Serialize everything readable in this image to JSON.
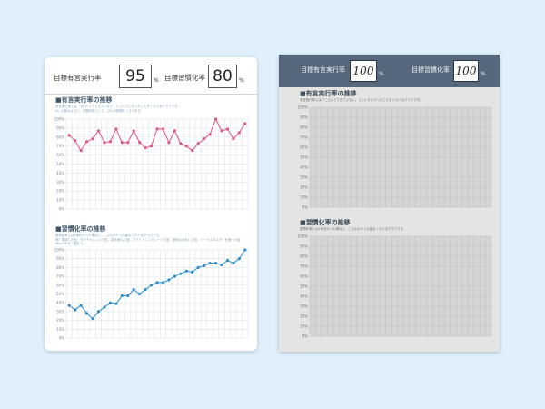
{
  "left_card": {
    "header": {
      "label1": "目標有言実行率",
      "value1": "95",
      "pct1": "%",
      "label2": "目標習慣化率",
      "value2": "80",
      "pct2": "%"
    },
    "section1": {
      "title": "■有言実行率の推移",
      "note": "有言実行率とは「1日ＡＬでできていない、じっくりにやったことをくらべるグラフです。",
      "note2": "※…以前のように、万国共有として、ひとの評価をくらべます。"
    },
    "section2": {
      "title": "■習慣化率の推移",
      "note": "習慣化率とは1毎日やった場合と、こぶんのやった量をくらべるグラフです。",
      "note2": "例）達成した目、ダイチャレンジで目、書を読んだ目、ホワイトニングシートで目、読み込みをした目、ソートエネルギーを使った目、Word をモ一度打つ。"
    }
  },
  "right_photo": {
    "header": {
      "label1": "目標有言実行率",
      "value1": "100",
      "pct1": "%",
      "label2": "目標習慣化率",
      "value2": "100",
      "pct2": "%"
    },
    "section1": {
      "title": "■有言実行率の推移",
      "note": "有言実行率とは「こぶんでできていない、じっくりにやったことをくらべるグラフです。"
    },
    "section2": {
      "title": "■習慣化率の推移",
      "note": "習慣化率とは1毎日やった場合と、こぶんのやった量をくらべるグラフです。"
    }
  },
  "chart_data": [
    {
      "type": "line",
      "ylabel_ticks": [
        "100%",
        "90%",
        "80%",
        "70%",
        "60%",
        "50%",
        "40%",
        "30%",
        "20%",
        "10%",
        "0%"
      ],
      "ylim": [
        0,
        100
      ],
      "series": [
        {
          "color": "#e0577f",
          "values": [
            82,
            76,
            65,
            75,
            78,
            87,
            74,
            75,
            89,
            74,
            74,
            87,
            74,
            68,
            70,
            89,
            89,
            74,
            87,
            73,
            70,
            65,
            73,
            78,
            83,
            100,
            87,
            89,
            78,
            85,
            95
          ]
        }
      ]
    },
    {
      "type": "line",
      "ylabel_ticks": [
        "100%",
        "90%",
        "80%",
        "70%",
        "60%",
        "50%",
        "40%",
        "30%",
        "20%",
        "10%",
        "0%"
      ],
      "ylim": [
        0,
        100
      ],
      "series": [
        {
          "color": "#2f8fcb",
          "values": [
            37,
            32,
            37,
            28,
            22,
            30,
            35,
            40,
            39,
            48,
            48,
            55,
            50,
            55,
            60,
            63,
            63,
            66,
            70,
            73,
            76,
            75,
            80,
            82,
            85,
            85,
            83,
            88,
            85,
            90,
            100
          ]
        }
      ]
    },
    {
      "type": "line",
      "ylabel_ticks": [
        "100%",
        "90%",
        "80%",
        "70%",
        "60%",
        "50%",
        "40%",
        "30%",
        "20%",
        "10%",
        "0%"
      ],
      "ylim": [
        0,
        100
      ],
      "series": []
    },
    {
      "type": "line",
      "ylabel_ticks": [
        "100%",
        "90%",
        "80%",
        "70%",
        "60%",
        "50%",
        "40%",
        "30%",
        "20%",
        "10%",
        "0%"
      ],
      "ylim": [
        0,
        100
      ],
      "series": []
    }
  ]
}
